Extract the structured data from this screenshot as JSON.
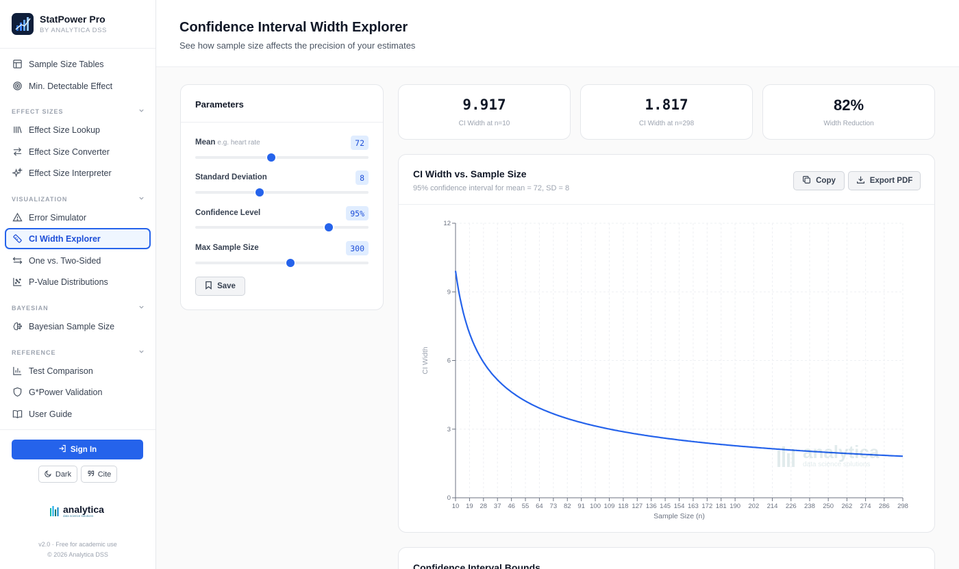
{
  "brand": {
    "title": "StatPower Pro",
    "subtitle": "BY ANALYTICA DSS"
  },
  "nav_top": [
    {
      "label": "Sample Size Tables",
      "icon": "table-icon"
    },
    {
      "label": "Min. Detectable Effect",
      "icon": "target-icon"
    }
  ],
  "sections": {
    "effect_sizes": "EFFECT SIZES",
    "visualization": "VISUALIZATION",
    "bayesian": "BAYESIAN",
    "reference": "REFERENCE"
  },
  "nav_effect": [
    {
      "label": "Effect Size Lookup",
      "icon": "library-icon"
    },
    {
      "label": "Effect Size Converter",
      "icon": "arrows-swap-icon"
    },
    {
      "label": "Effect Size Interpreter",
      "icon": "sparkles-icon"
    }
  ],
  "nav_visual": [
    {
      "label": "Error Simulator",
      "icon": "warning-triangle-icon"
    },
    {
      "label": "CI Width Explorer",
      "icon": "ruler-icon",
      "active": true
    },
    {
      "label": "One vs. Two-Sided",
      "icon": "arrows-left-right-icon"
    },
    {
      "label": "P-Value Distributions",
      "icon": "scatter-icon"
    }
  ],
  "nav_bayes": [
    {
      "label": "Bayesian Sample Size",
      "icon": "brain-icon"
    }
  ],
  "nav_ref": [
    {
      "label": "Test Comparison",
      "icon": "bar-chart-icon"
    },
    {
      "label": "G*Power Validation",
      "icon": "shield-icon"
    },
    {
      "label": "User Guide",
      "icon": "book-icon"
    }
  ],
  "footer": {
    "sign_in": "Sign In",
    "dark": "Dark",
    "cite": "Cite",
    "logo_text": "analytica",
    "logo_sub": "data science solutions",
    "version": "v2.0 · Free for academic use",
    "copyright": "© 2026 Analytica DSS"
  },
  "header": {
    "title": "Confidence Interval Width Explorer",
    "subtitle": "See how sample size affects the precision of your estimates"
  },
  "params": {
    "title": "Parameters",
    "mean": {
      "label": "Mean",
      "hint": "e.g. heart rate",
      "value": "72",
      "level": 0.44
    },
    "sd": {
      "label": "Standard Deviation",
      "value": "8",
      "level": 0.37
    },
    "confidence": {
      "label": "Confidence Level",
      "value": "95%",
      "level": 0.77
    },
    "max_n": {
      "label": "Max Sample Size",
      "value": "300",
      "level": 0.55
    },
    "save": "Save"
  },
  "stats": [
    {
      "value": "9.917",
      "label": "CI Width at n=10"
    },
    {
      "value": "1.817",
      "label": "CI Width at n=298"
    },
    {
      "value": "82%",
      "label": "Width Reduction"
    }
  ],
  "chart_card": {
    "title": "CI Width vs. Sample Size",
    "subtitle": "95% confidence interval for mean = 72, SD = 8",
    "copy": "Copy",
    "export": "Export PDF"
  },
  "bounds_card": {
    "title": "Confidence Interval Bounds"
  },
  "colors": {
    "accent": "#2563eb",
    "line": "#2563eb",
    "active_bg": "#eff6ff"
  },
  "chart_data": {
    "type": "line",
    "title": "",
    "xlabel": "Sample Size (n)",
    "ylabel": "CI Width",
    "xlim": [
      10,
      298
    ],
    "ylim": [
      0,
      12
    ],
    "x_ticks": [
      10,
      19,
      28,
      37,
      46,
      55,
      64,
      73,
      82,
      91,
      100,
      109,
      118,
      127,
      136,
      145,
      154,
      163,
      172,
      181,
      190,
      202,
      214,
      226,
      238,
      250,
      262,
      274,
      286,
      298
    ],
    "y_ticks": [
      0,
      3,
      6,
      9,
      12
    ],
    "grid": true,
    "series": [
      {
        "x": [
          10,
          12,
          14,
          16,
          19,
          22,
          25,
          28,
          32,
          37,
          42,
          46,
          55,
          64,
          73,
          82,
          91,
          100,
          118,
          136,
          154,
          172,
          190,
          214,
          238,
          262,
          286,
          298
        ],
        "y": [
          9.917,
          8.953,
          8.2,
          7.598,
          6.923,
          6.392,
          5.966,
          5.608,
          5.228,
          4.841,
          4.525,
          4.319,
          3.945,
          3.651,
          3.417,
          3.224,
          3.061,
          2.918,
          2.681,
          2.497,
          2.346,
          2.218,
          2.111,
          1.987,
          1.884,
          1.795,
          1.719,
          1.817
        ]
      }
    ]
  }
}
